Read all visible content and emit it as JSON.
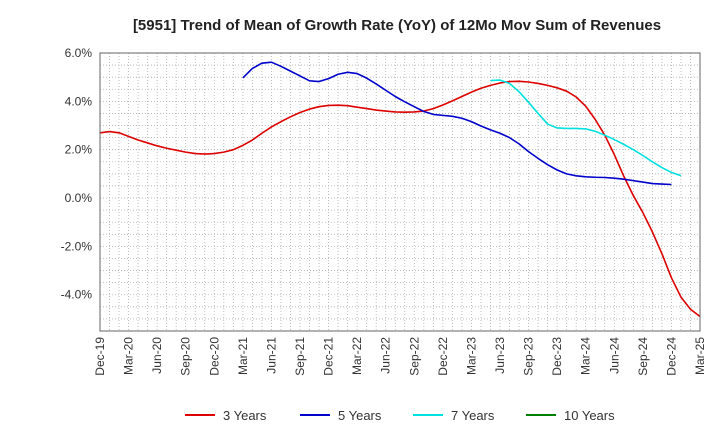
{
  "chart_data": {
    "type": "line",
    "title": "[5951]  Trend of Mean of Growth Rate (YoY) of 12Mo Mov Sum of Revenues",
    "xlabel": "",
    "ylabel": "",
    "ylim": [
      -5.5,
      6.0
    ],
    "yticks": [
      {
        "value": 6.0,
        "label": "6.0%"
      },
      {
        "value": 4.0,
        "label": "4.0%"
      },
      {
        "value": 2.0,
        "label": "2.0%"
      },
      {
        "value": 0.0,
        "label": "0.0%"
      },
      {
        "value": -2.0,
        "label": "-2.0%"
      },
      {
        "value": -4.0,
        "label": "-4.0%"
      }
    ],
    "x_start": "Dec-19",
    "x_months": 63,
    "xticks": [
      {
        "index": 0,
        "label": "Dec-19"
      },
      {
        "index": 3,
        "label": "Mar-20"
      },
      {
        "index": 6,
        "label": "Jun-20"
      },
      {
        "index": 9,
        "label": "Sep-20"
      },
      {
        "index": 12,
        "label": "Dec-20"
      },
      {
        "index": 15,
        "label": "Mar-21"
      },
      {
        "index": 18,
        "label": "Jun-21"
      },
      {
        "index": 21,
        "label": "Sep-21"
      },
      {
        "index": 24,
        "label": "Dec-21"
      },
      {
        "index": 27,
        "label": "Mar-22"
      },
      {
        "index": 30,
        "label": "Jun-22"
      },
      {
        "index": 33,
        "label": "Sep-22"
      },
      {
        "index": 36,
        "label": "Dec-22"
      },
      {
        "index": 39,
        "label": "Mar-23"
      },
      {
        "index": 42,
        "label": "Jun-23"
      },
      {
        "index": 45,
        "label": "Sep-23"
      },
      {
        "index": 48,
        "label": "Dec-23"
      },
      {
        "index": 51,
        "label": "Mar-24"
      },
      {
        "index": 54,
        "label": "Jun-24"
      },
      {
        "index": 57,
        "label": "Sep-24"
      },
      {
        "index": 60,
        "label": "Dec-24"
      },
      {
        "index": 63,
        "label": "Mar-25"
      }
    ],
    "grid": true,
    "legend_position": "bottom",
    "series": [
      {
        "name": "3 Years",
        "color": "#dd0000",
        "start_index": 0,
        "values": [
          2.7,
          2.75,
          2.7,
          2.55,
          2.4,
          2.28,
          2.16,
          2.06,
          1.98,
          1.9,
          1.84,
          1.82,
          1.84,
          1.9,
          2.0,
          2.18,
          2.4,
          2.68,
          2.94,
          3.16,
          3.36,
          3.54,
          3.68,
          3.78,
          3.83,
          3.84,
          3.82,
          3.76,
          3.7,
          3.64,
          3.6,
          3.56,
          3.55,
          3.56,
          3.6,
          3.7,
          3.85,
          4.02,
          4.2,
          4.38,
          4.54,
          4.66,
          4.76,
          4.82,
          4.83,
          4.8,
          4.74,
          4.66,
          4.56,
          4.42,
          4.18,
          3.8,
          3.25,
          2.6,
          1.8,
          0.9,
          0.1,
          -0.6,
          -1.4,
          -2.3,
          -3.3,
          -4.1,
          -4.6,
          -4.9
        ]
      },
      {
        "name": "5 Years",
        "color": "#0000cc",
        "start_index": 15,
        "values": [
          4.97,
          5.36,
          5.58,
          5.62,
          5.45,
          5.25,
          5.05,
          4.85,
          4.82,
          4.94,
          5.12,
          5.2,
          5.15,
          4.96,
          4.72,
          4.46,
          4.2,
          3.98,
          3.78,
          3.58,
          3.46,
          3.42,
          3.38,
          3.3,
          3.16,
          2.98,
          2.82,
          2.68,
          2.5,
          2.24,
          1.92,
          1.64,
          1.38,
          1.16,
          1.0,
          0.92,
          0.88,
          0.86,
          0.85,
          0.82,
          0.78,
          0.72,
          0.66,
          0.6,
          0.58,
          0.56
        ]
      },
      {
        "name": "7 Years",
        "color": "#00e0e0",
        "start_index": 41,
        "values": [
          4.86,
          4.88,
          4.74,
          4.4,
          3.96,
          3.5,
          3.06,
          2.9,
          2.88,
          2.88,
          2.86,
          2.76,
          2.6,
          2.42,
          2.22,
          2.0,
          1.76,
          1.5,
          1.26,
          1.06,
          0.92
        ]
      },
      {
        "name": "10 Years",
        "color": "#008000",
        "start_index": 0,
        "values": []
      }
    ]
  }
}
